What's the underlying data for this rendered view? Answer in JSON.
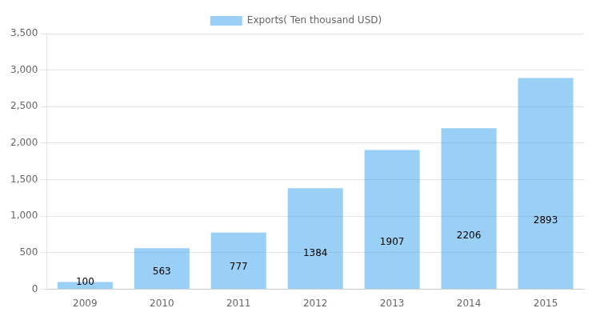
{
  "chart_data": {
    "type": "bar",
    "categories": [
      "2009",
      "2010",
      "2011",
      "2012",
      "2013",
      "2014",
      "2015"
    ],
    "series": [
      {
        "name": "Exports( Ten thousand USD)",
        "values": [
          100,
          563,
          777,
          1384,
          1907,
          2206,
          2893
        ]
      }
    ],
    "ylim": [
      0,
      3500
    ],
    "yticks": [
      0,
      500,
      1000,
      1500,
      2000,
      2500,
      3000,
      3500
    ],
    "grid": true,
    "legend": "top",
    "data_labels": true
  }
}
